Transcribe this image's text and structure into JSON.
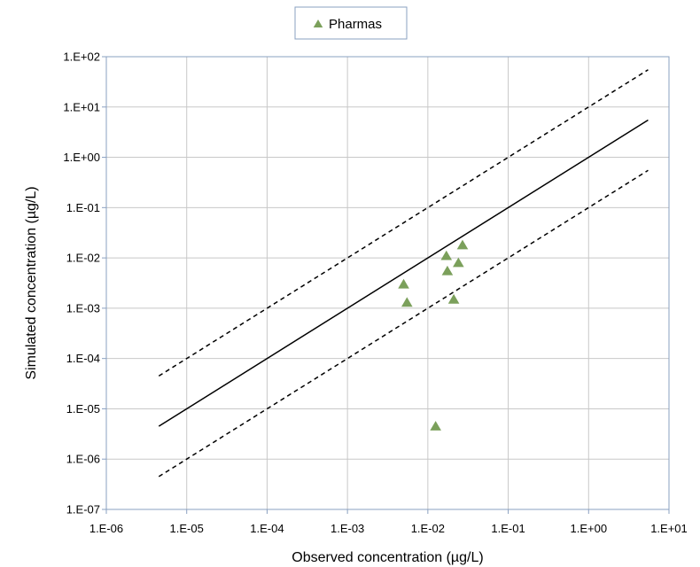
{
  "chart_data": {
    "type": "scatter",
    "xscale": "log",
    "yscale": "log",
    "xlim": [
      1e-06,
      10
    ],
    "ylim": [
      1e-07,
      100
    ],
    "xticks": [
      "1.E-06",
      "1.E-05",
      "1.E-04",
      "1.E-03",
      "1.E-02",
      "1.E-01",
      "1.E+00",
      "1.E+01"
    ],
    "yticks": [
      "1.E-07",
      "1.E-06",
      "1.E-05",
      "1.E-04",
      "1.E-03",
      "1.E-02",
      "1.E-01",
      "1.E+00",
      "1.E+01",
      "1.E+02"
    ],
    "xlabel": "Observed concentration (µg/L)",
    "ylabel": "Simulated concentration (µg/L)",
    "grid": true,
    "legend_position": "top-center",
    "series": [
      {
        "name": "Pharmas",
        "marker": "triangle",
        "color": "#7ba05b",
        "points": [
          {
            "x": 0.005,
            "y": 0.003
          },
          {
            "x": 0.0055,
            "y": 0.0013
          },
          {
            "x": 0.0125,
            "y": 4.5e-06
          },
          {
            "x": 0.017,
            "y": 0.011
          },
          {
            "x": 0.0175,
            "y": 0.0055
          },
          {
            "x": 0.021,
            "y": 0.0015
          },
          {
            "x": 0.024,
            "y": 0.008
          },
          {
            "x": 0.027,
            "y": 0.018
          }
        ]
      }
    ],
    "reference_lines": [
      {
        "style": "solid",
        "color": "#000000",
        "points": [
          {
            "x": 4.5e-06,
            "y": 4.5e-06
          },
          {
            "x": 5.5,
            "y": 5.5
          }
        ]
      },
      {
        "style": "dashed",
        "color": "#000000",
        "points": [
          {
            "x": 4.5e-06,
            "y": 4.5e-05
          },
          {
            "x": 5.5,
            "y": 55
          }
        ]
      },
      {
        "style": "dashed",
        "color": "#000000",
        "points": [
          {
            "x": 4.5e-06,
            "y": 4.5e-07
          },
          {
            "x": 5.5,
            "y": 0.55
          }
        ]
      }
    ]
  }
}
